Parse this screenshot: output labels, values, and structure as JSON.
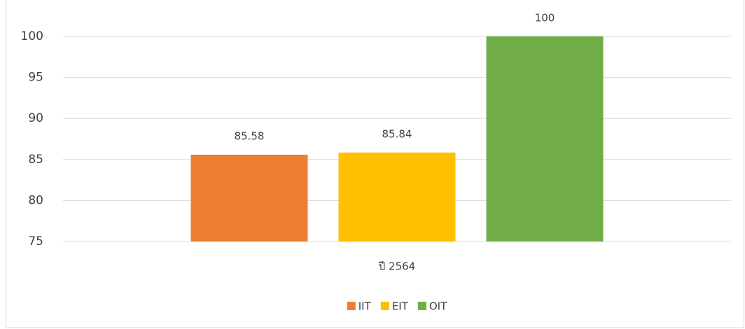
{
  "chart_data": {
    "type": "bar",
    "categories": [
      "ปี 2564"
    ],
    "series": [
      {
        "name": "IIT",
        "color": "#ed7d31",
        "values": [
          85.58
        ]
      },
      {
        "name": "EIT",
        "color": "#ffc000",
        "values": [
          85.84
        ]
      },
      {
        "name": "OIT",
        "color": "#70ad47",
        "values": [
          100
        ]
      }
    ],
    "ylim": [
      75,
      100
    ],
    "yticks": [
      75,
      80,
      85,
      90,
      95,
      100
    ],
    "grid": true,
    "legend": "bottom"
  }
}
